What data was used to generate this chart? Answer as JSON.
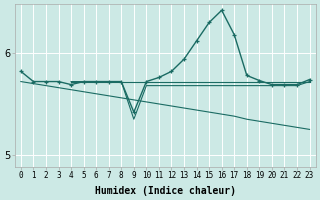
{
  "xlabel": "Humidex (Indice chaleur)",
  "bg_color": "#cce9e5",
  "grid_color": "#ffffff",
  "line_color": "#1a6b63",
  "xlim": [
    -0.5,
    23.5
  ],
  "ylim": [
    4.88,
    6.48
  ],
  "xticks": [
    0,
    1,
    2,
    3,
    4,
    5,
    6,
    7,
    8,
    9,
    10,
    11,
    12,
    13,
    14,
    15,
    16,
    17,
    18,
    19,
    20,
    21,
    22,
    23
  ],
  "yticks": [
    5.0,
    6.0
  ],
  "main_x": [
    0,
    1,
    2,
    3,
    4,
    5,
    6,
    7,
    8,
    9,
    10,
    11,
    12,
    13,
    14,
    15,
    16,
    17,
    18,
    19,
    20,
    21,
    22,
    23
  ],
  "main_y": [
    5.82,
    5.72,
    5.72,
    5.72,
    5.69,
    5.72,
    5.72,
    5.72,
    5.72,
    5.42,
    5.72,
    5.76,
    5.82,
    5.94,
    6.12,
    6.3,
    6.42,
    6.18,
    5.78,
    5.73,
    5.69,
    5.69,
    5.69,
    5.74
  ],
  "diag_x": [
    0,
    1,
    2,
    3,
    4,
    5,
    6,
    7,
    8,
    9,
    10,
    11,
    12,
    13,
    14,
    15,
    16,
    17,
    18,
    19,
    20,
    21,
    22,
    23
  ],
  "diag_y": [
    5.72,
    5.7,
    5.68,
    5.66,
    5.64,
    5.62,
    5.6,
    5.58,
    5.56,
    5.54,
    5.52,
    5.5,
    5.48,
    5.46,
    5.44,
    5.42,
    5.4,
    5.38,
    5.35,
    5.33,
    5.31,
    5.29,
    5.27,
    5.25
  ],
  "flat_x": [
    4,
    5,
    6,
    7,
    8,
    9,
    10,
    11,
    12,
    13,
    14,
    15,
    16,
    17,
    18,
    19,
    20,
    21,
    22,
    23
  ],
  "flat_y": [
    5.72,
    5.72,
    5.72,
    5.72,
    5.72,
    5.72,
    5.72,
    5.72,
    5.72,
    5.72,
    5.72,
    5.72,
    5.72,
    5.72,
    5.72,
    5.72,
    5.72,
    5.72,
    5.72,
    5.72
  ],
  "vdip_x": [
    4,
    5,
    6,
    7,
    8,
    9,
    10,
    11,
    12,
    13,
    14,
    15,
    16,
    17,
    18,
    19,
    20,
    21,
    22,
    23
  ],
  "vdip_y": [
    5.72,
    5.72,
    5.72,
    5.72,
    5.72,
    5.35,
    5.68,
    5.68,
    5.68,
    5.68,
    5.68,
    5.68,
    5.68,
    5.68,
    5.68,
    5.68,
    5.68,
    5.68,
    5.68,
    5.72
  ]
}
